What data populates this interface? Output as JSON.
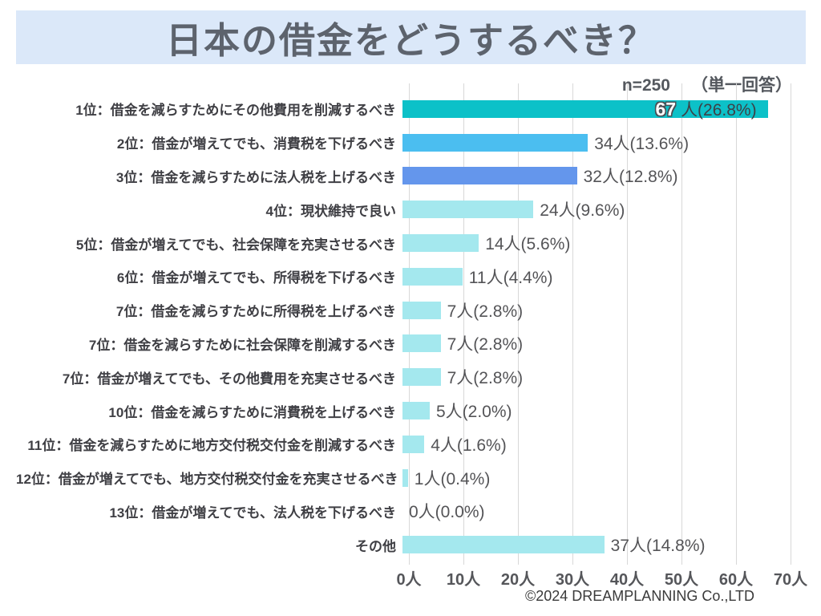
{
  "title": "日本の借金をどうするべき？",
  "meta": {
    "n_label": "n=250",
    "answer_type": "（単一回答）"
  },
  "footer": "©2024 DREAMPLANNING Co.,LTD",
  "colors": {
    "title_band_bg": "#dbe8f9",
    "title_text": "#5d636d",
    "bar_rank1": "#0cc1c8",
    "bar_rank2": "#4bbef0",
    "bar_rank3": "#6496ec",
    "bar_default": "#a4e8ee",
    "gridline": "#d8d8d8"
  },
  "chart_data": {
    "type": "bar",
    "orientation": "horizontal",
    "title": "日本の借金をどうするべき？",
    "sample_note": "n=250 （単一回答）",
    "categories": [
      "1位：借金を減らすためにその他費用を削減するべき",
      "2位：借金が増えてでも、消費税を下げるべき",
      "3位：借金を減らすために法人税を上げるべき",
      "4位：現状維持で良い",
      "5位：借金が増えてでも、社会保障を充実させるべき",
      "6位：借金が増えてでも、所得税を下げるべき",
      "7位：借金を減らすために所得税を上げるべき",
      "7位：借金を減らすために社会保障を削減するべき",
      "7位：借金が増えてでも、その他費用を充実させるべき",
      "10位：借金を減らすために消費税を上げるべき",
      "11位：借金を減らすために地方交付税交付金を削減するべき",
      "12位：借金が増えてでも、地方交付税交付金を充実させるべき",
      "13位：借金が増えてでも、法人税を下げるべき",
      "その他"
    ],
    "values": [
      67,
      34,
      32,
      24,
      14,
      11,
      7,
      7,
      7,
      5,
      4,
      1,
      0,
      37
    ],
    "percentages": [
      26.8,
      13.6,
      12.8,
      9.6,
      5.6,
      4.4,
      2.8,
      2.8,
      2.8,
      2.0,
      1.6,
      0.4,
      0.0,
      14.8
    ],
    "value_labels": [
      "67 人(26.8%)",
      "34人(13.6%)",
      "32人(12.8%)",
      "24人(9.6%)",
      "14人(5.6%)",
      "11人(4.4%)",
      "7人(2.8%)",
      "7人(2.8%)",
      "7人(2.8%)",
      "5人(2.0%)",
      "4人(1.6%)",
      "1人(0.4%)",
      "0人(0.0%)",
      "37人(14.8%)"
    ],
    "inside_label": {
      "count": "67",
      "rest": "人(26.8%)"
    },
    "bar_colors": [
      "#0cc1c8",
      "#4bbef0",
      "#6496ec",
      "#a4e8ee",
      "#a4e8ee",
      "#a4e8ee",
      "#a4e8ee",
      "#a4e8ee",
      "#a4e8ee",
      "#a4e8ee",
      "#a4e8ee",
      "#a4e8ee",
      "#a4e8ee",
      "#a4e8ee"
    ],
    "x_ticks": [
      "0人",
      "10人",
      "20人",
      "30人",
      "40人",
      "50人",
      "60人",
      "70人"
    ],
    "xlim": [
      0,
      70
    ],
    "grid": true,
    "legend": false
  }
}
